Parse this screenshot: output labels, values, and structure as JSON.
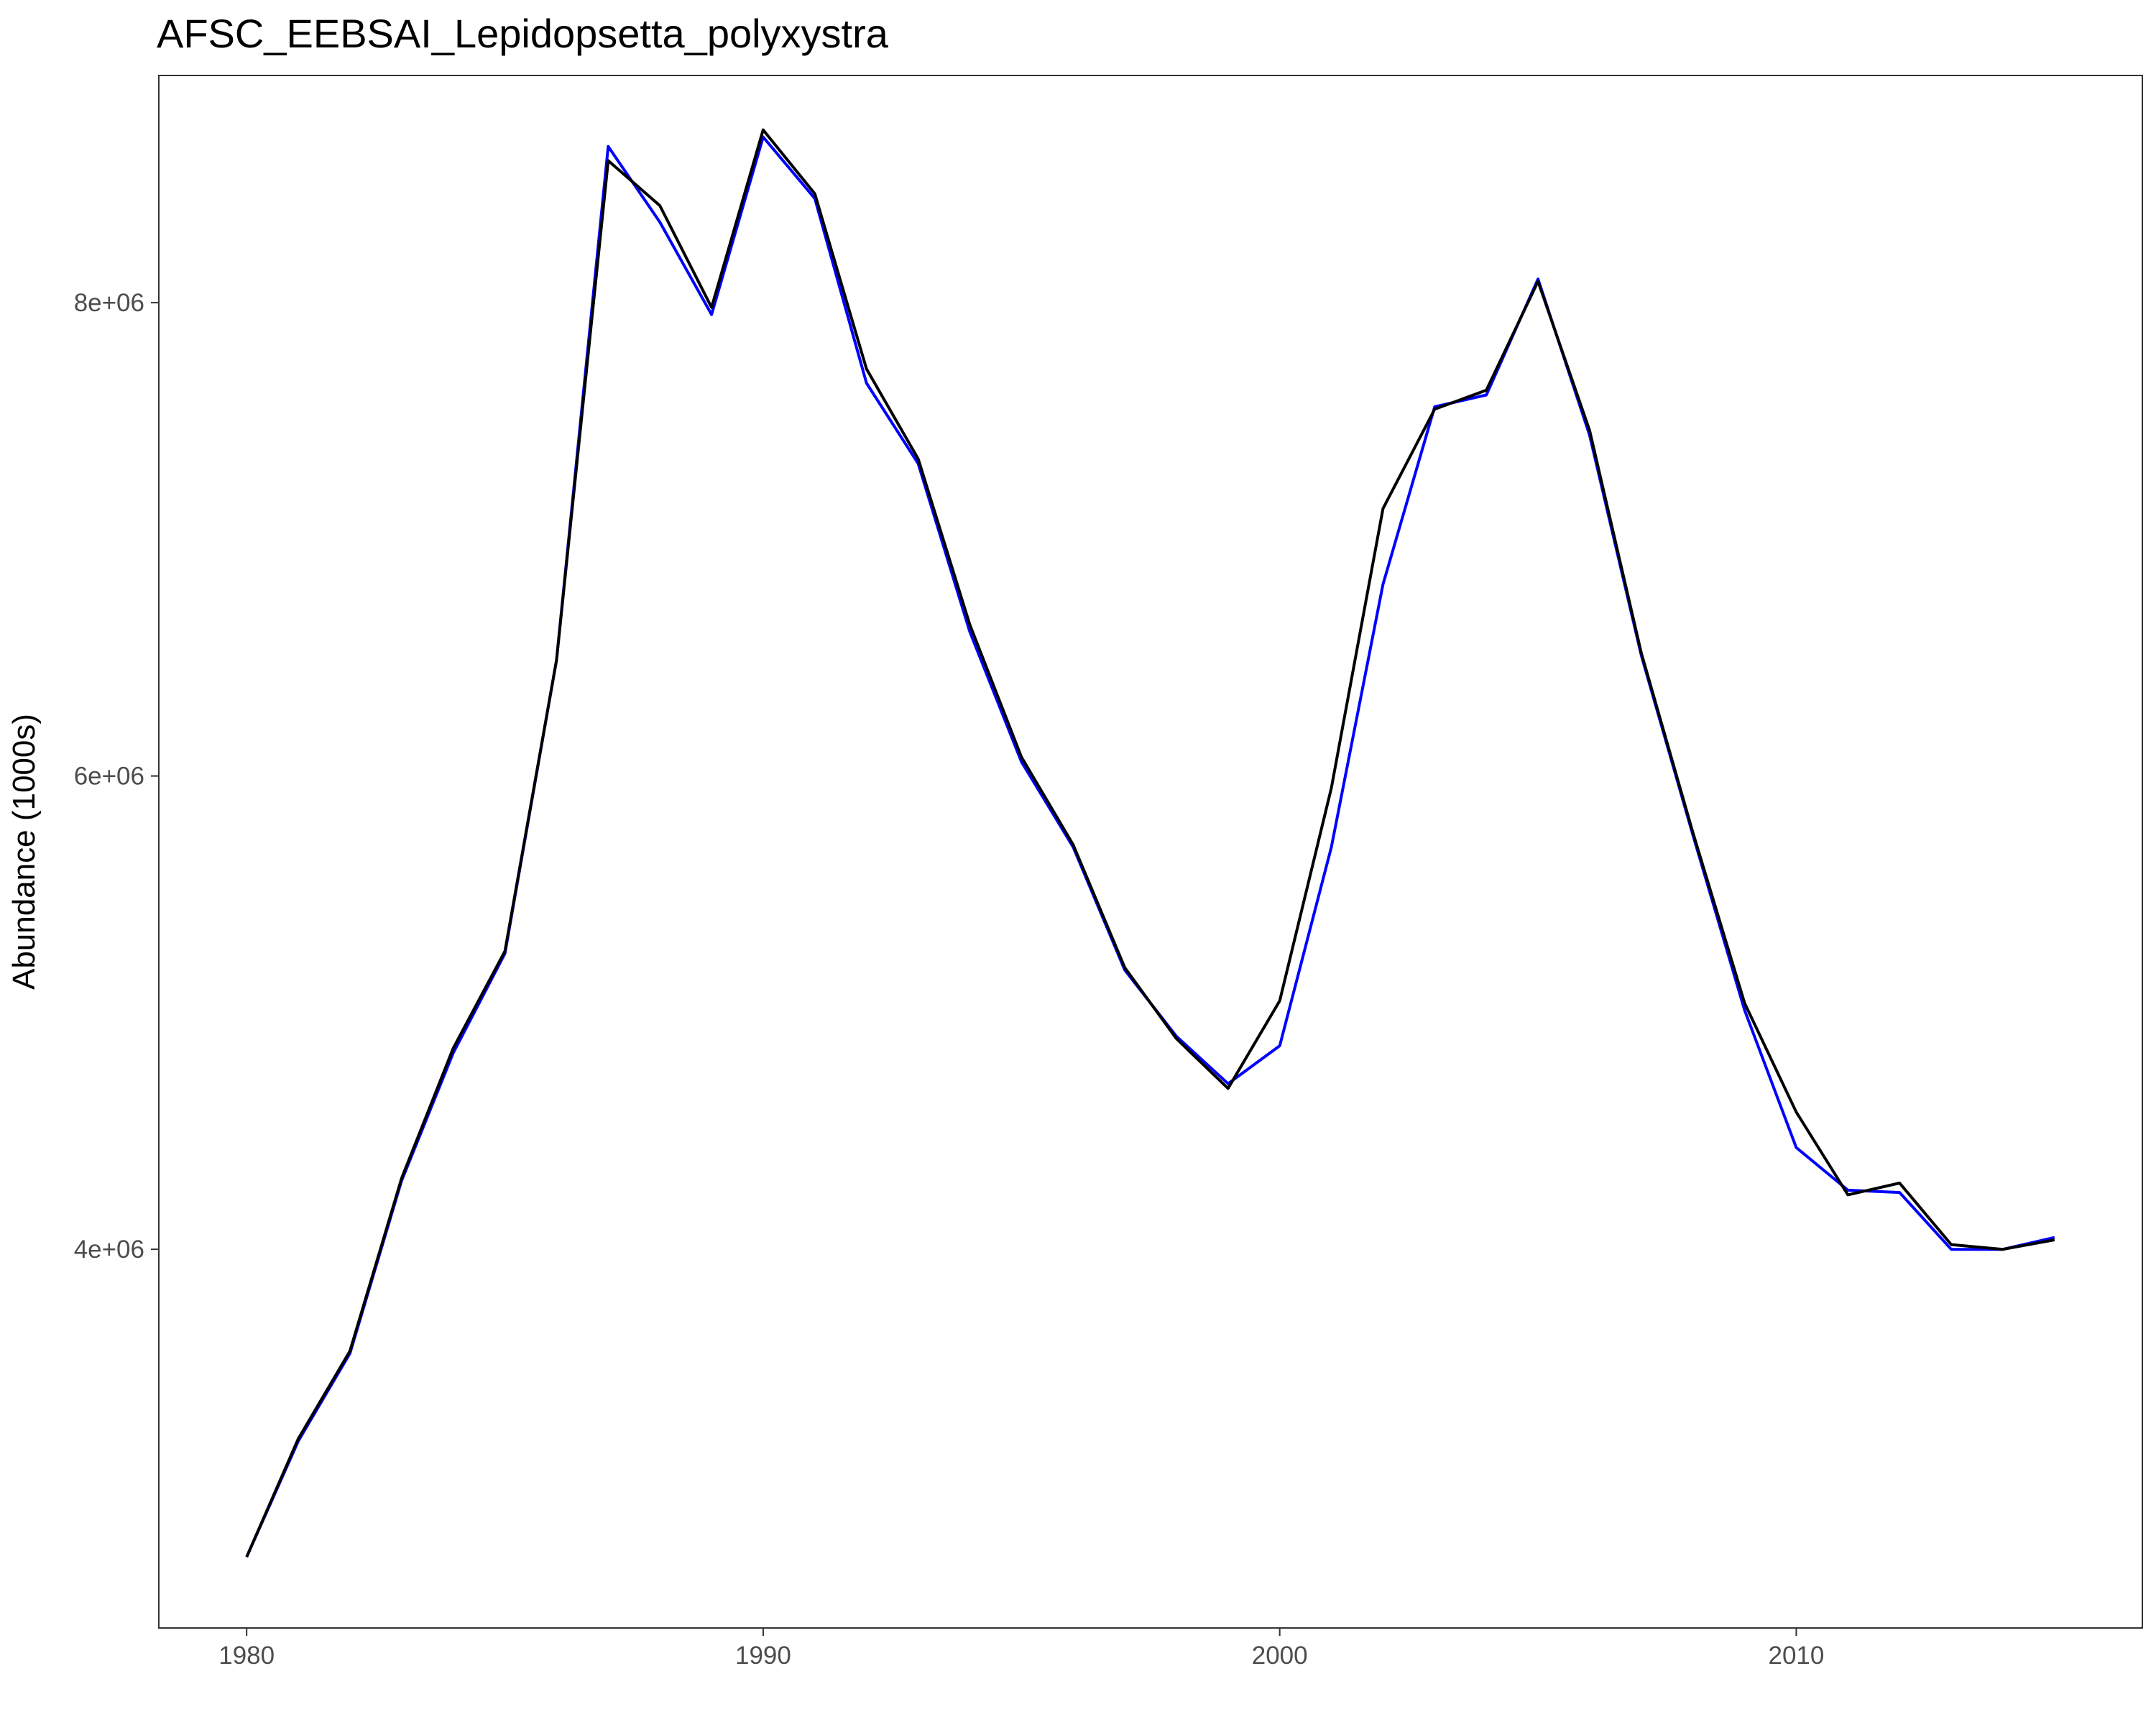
{
  "chart_data": {
    "type": "line",
    "title": "AFSC_EEBSAI_Lepidopsetta_polyxystra",
    "xlabel": "",
    "ylabel": "Abundance (1000s)",
    "xlim": [
      1978.3,
      2016.7
    ],
    "ylim": [
      2400000,
      8960000
    ],
    "xticks": [
      1980,
      1990,
      2000,
      2010
    ],
    "xtick_labels": [
      "1980",
      "1990",
      "2000",
      "2010"
    ],
    "yticks": [
      4000000,
      6000000,
      8000000
    ],
    "ytick_labels": [
      "4e+06",
      "6e+06",
      "8e+06"
    ],
    "grid": false,
    "legend": "none",
    "x": [
      1980,
      1981,
      1982,
      1983,
      1984,
      1985,
      1986,
      1987,
      1988,
      1989,
      1990,
      1991,
      1992,
      1993,
      1994,
      1995,
      1996,
      1997,
      1998,
      1999,
      2000,
      2001,
      2002,
      2003,
      2004,
      2005,
      2006,
      2007,
      2008,
      2009,
      2010,
      2011,
      2012,
      2013,
      2014,
      2015
    ],
    "series": [
      {
        "color": "#0000ff",
        "values": [
          2700000,
          3190000,
          3560000,
          4290000,
          4830000,
          5250000,
          6490000,
          8660000,
          8340000,
          7950000,
          8700000,
          8440000,
          7660000,
          7320000,
          6610000,
          6060000,
          5700000,
          5180000,
          4900000,
          4700000,
          4860000,
          5700000,
          6810000,
          7560000,
          7610000,
          8100000,
          7440000,
          6510000,
          5750000,
          5010000,
          4430000,
          4250000,
          4240000,
          4000000,
          4000000,
          4050000
        ]
      },
      {
        "color": "#000000",
        "values": [
          2700000,
          3200000,
          3570000,
          4300000,
          4850000,
          5260000,
          6490000,
          8600000,
          8410000,
          7980000,
          8730000,
          8460000,
          7720000,
          7340000,
          6640000,
          6080000,
          5710000,
          5190000,
          4890000,
          4680000,
          5050000,
          5950000,
          7130000,
          7550000,
          7630000,
          8090000,
          7460000,
          6520000,
          5760000,
          5040000,
          4580000,
          4230000,
          4280000,
          4020000,
          4000000,
          4040000
        ]
      }
    ]
  }
}
